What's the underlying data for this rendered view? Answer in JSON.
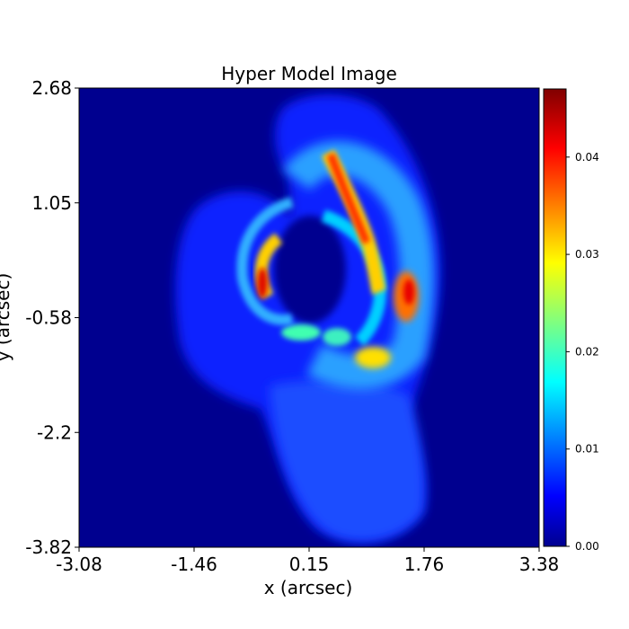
{
  "chart_data": {
    "type": "heatmap",
    "title": "Hyper Model Image",
    "xlabel": "x (arcsec)",
    "ylabel": "y (arcsec)",
    "xlim": [
      -3.08,
      3.38
    ],
    "ylim": [
      -3.82,
      2.68
    ],
    "x_ticks": [
      "-3.08",
      "-1.46",
      "0.15",
      "1.76",
      "3.38"
    ],
    "y_ticks": [
      "2.68",
      "1.05",
      "-0.58",
      "-2.2",
      "-3.82"
    ],
    "colormap": "jet",
    "colorbar": {
      "range": [
        0.0,
        0.047
      ],
      "ticks": [
        "0.00",
        "0.01",
        "0.02",
        "0.03",
        "0.04"
      ],
      "tick_values": [
        0.0,
        0.01,
        0.02,
        0.03,
        0.04
      ]
    },
    "background_value": 0.0,
    "grid": false
  }
}
